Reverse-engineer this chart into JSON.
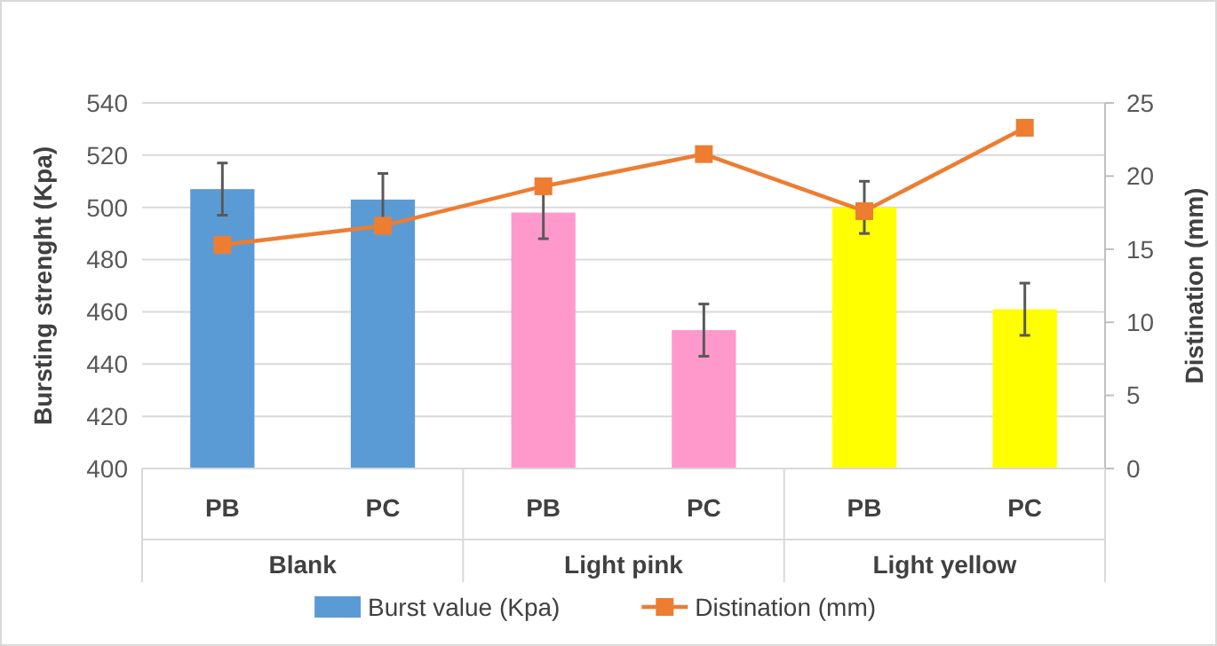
{
  "chart_data": {
    "type": "bar",
    "categories": [
      "PB",
      "PC",
      "PB",
      "PC",
      "PB",
      "PC"
    ],
    "series": [
      {
        "name": "Burst value (Kpa)",
        "color": "#5b9bd5",
        "colors": [
          "#5b9bd5",
          "#5b9bd5",
          "#ff99cc",
          "#ff99cc",
          "#ffff00",
          "#ffff00"
        ],
        "values": [
          507,
          503,
          498,
          453,
          500,
          461
        ],
        "errors": [
          10,
          10,
          10,
          10,
          10,
          10
        ]
      },
      {
        "name": "Distination (mm)",
        "type": "line",
        "axis": "y2",
        "color": "#ed7d31",
        "marker": "square",
        "values": [
          15.3,
          16.6,
          19.3,
          21.5,
          17.6,
          23.3
        ]
      }
    ],
    "ylabel": "Bursting strenght (Kpa)",
    "y2label": "Distination (mm)",
    "ylim": [
      400,
      540
    ],
    "yticks": [
      400,
      420,
      440,
      460,
      480,
      500,
      520,
      540
    ],
    "y2lim": [
      0,
      25
    ],
    "y2ticks": [
      0,
      5,
      10,
      15,
      20,
      25
    ],
    "annotations": [
      "Blank",
      "Light pink",
      "Light yellow"
    ],
    "grid": "y",
    "legend": "bottom"
  }
}
